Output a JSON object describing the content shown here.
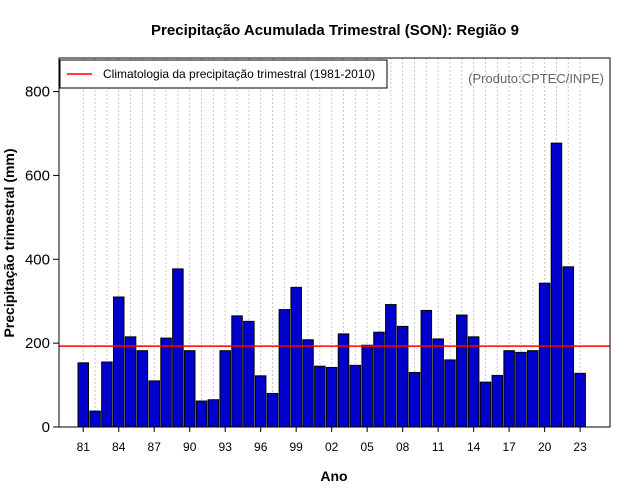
{
  "chart_data": {
    "type": "bar",
    "title": "Precipitação Acumulada Trimestral (SON): Região 9",
    "xlabel": "Ano",
    "ylabel": "Precipitação trimestral (mm)",
    "ylim": [
      0,
      880
    ],
    "yticks": [
      0,
      200,
      400,
      600,
      800
    ],
    "categories": [
      "1981",
      "1982",
      "1983",
      "1984",
      "1985",
      "1986",
      "1987",
      "1988",
      "1989",
      "1990",
      "1991",
      "1992",
      "1993",
      "1994",
      "1995",
      "1996",
      "1997",
      "1998",
      "1999",
      "2000",
      "2001",
      "2002",
      "2003",
      "2004",
      "2005",
      "2006",
      "2007",
      "2008",
      "2009",
      "2010",
      "2011",
      "2012",
      "2013",
      "2014",
      "2015",
      "2016",
      "2017",
      "2018",
      "2019",
      "2020",
      "2021",
      "2022",
      "2023"
    ],
    "values": [
      153,
      38,
      155,
      310,
      215,
      182,
      110,
      212,
      377,
      182,
      62,
      65,
      182,
      265,
      252,
      122,
      80,
      280,
      333,
      208,
      145,
      142,
      222,
      147,
      195,
      226,
      292,
      240,
      130,
      278,
      210,
      160,
      267,
      215,
      107,
      123,
      182,
      178,
      182,
      343,
      677,
      382,
      128
    ],
    "xtick_labels": [
      "81",
      "84",
      "87",
      "90",
      "93",
      "96",
      "99",
      "02",
      "05",
      "08",
      "11",
      "14",
      "17",
      "20",
      "23"
    ],
    "xtick_years": [
      1981,
      1984,
      1987,
      1990,
      1993,
      1996,
      1999,
      2002,
      2005,
      2008,
      2011,
      2014,
      2017,
      2020,
      2023
    ],
    "climatology": 193,
    "legend": {
      "label": "Climatologia da precipitação trimestral (1981-2010)",
      "placement": "top-left"
    },
    "source_note": "(Produto:CPTEC/INPE)",
    "grid": "vertical dotted",
    "colors": {
      "bar": "#0000cc",
      "bar_edge": "#000000",
      "climatology": "#ff0000",
      "grid": "#c8c8c8"
    }
  }
}
